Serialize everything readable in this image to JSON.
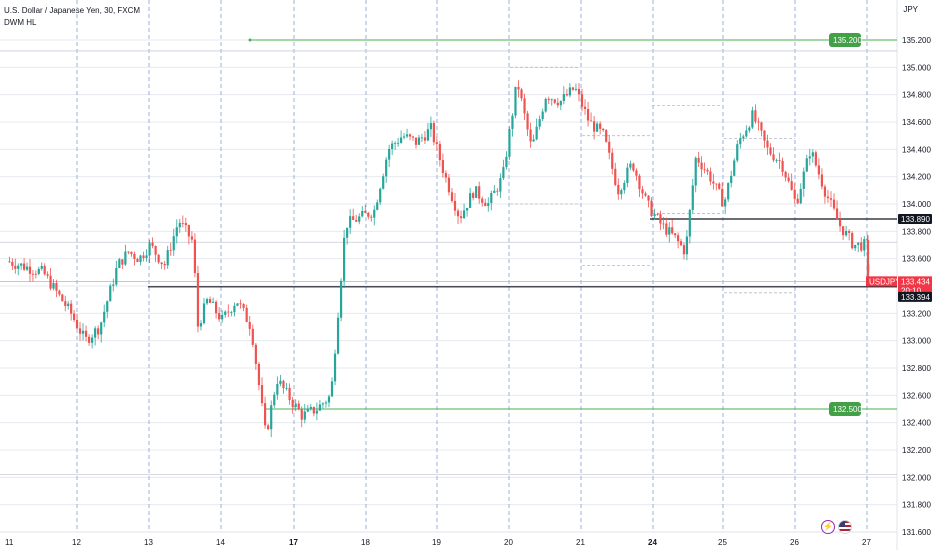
{
  "header": {
    "symbol_title": "U.S. Dollar / Japanese Yen, 30, FXCM",
    "indicator": "DWM HL"
  },
  "price_axis": {
    "currency": "JPY",
    "ticks": [
      "135.200",
      "135.000",
      "134.800",
      "134.600",
      "134.400",
      "134.200",
      "134.000",
      "133.800",
      "133.600",
      "133.400",
      "133.200",
      "133.000",
      "132.800",
      "132.600",
      "132.400",
      "132.200",
      "132.000",
      "131.800",
      "131.600"
    ]
  },
  "time_axis": {
    "ticks": [
      {
        "label": "11",
        "bold": false
      },
      {
        "label": "12",
        "bold": false
      },
      {
        "label": "13",
        "bold": false
      },
      {
        "label": "14",
        "bold": false
      },
      {
        "label": "17",
        "bold": true
      },
      {
        "label": "18",
        "bold": false
      },
      {
        "label": "19",
        "bold": false
      },
      {
        "label": "20",
        "bold": false
      },
      {
        "label": "21",
        "bold": false
      },
      {
        "label": "24",
        "bold": true
      },
      {
        "label": "25",
        "bold": false
      },
      {
        "label": "26",
        "bold": false
      },
      {
        "label": "27",
        "bold": false
      }
    ]
  },
  "tags": {
    "upper_level": "135.200",
    "lower_level": "132.500",
    "resistance": "133.890",
    "symbol": "USDJPY",
    "last_price": "133.434",
    "countdown": "20:10",
    "support": "133.394"
  },
  "colors": {
    "up": "#26a69a",
    "down": "#ef5350",
    "level_green": "#4caf50",
    "tag_green": "#43a047",
    "black_line": "#131722",
    "price_tag_red": "#f23645",
    "grid": "#9db2d8"
  },
  "chart_data": {
    "type": "candlestick",
    "symbol": "USDJPY",
    "timeframe": "30",
    "ylim": [
      131.56,
      135.3
    ],
    "levels": [
      {
        "price": 135.2,
        "style": "green"
      },
      {
        "price": 132.5,
        "style": "green"
      },
      {
        "price": 133.89,
        "style": "black"
      },
      {
        "price": 133.394,
        "style": "black"
      }
    ],
    "last_price": 133.434,
    "path": [
      [
        0.0,
        133.58
      ],
      [
        0.5,
        133.5
      ],
      [
        0.9,
        133.2
      ],
      [
        1.1,
        133.0
      ],
      [
        1.3,
        133.1
      ],
      [
        1.55,
        133.55
      ],
      [
        1.7,
        133.65
      ],
      [
        1.85,
        133.6
      ],
      [
        2.0,
        133.7
      ],
      [
        2.2,
        133.55
      ],
      [
        2.4,
        133.88
      ],
      [
        2.6,
        133.72
      ],
      [
        2.66,
        133.1
      ],
      [
        2.8,
        133.3
      ],
      [
        3.0,
        133.15
      ],
      [
        3.2,
        133.3
      ],
      [
        3.4,
        133.1
      ],
      [
        3.6,
        132.3
      ],
      [
        3.75,
        132.72
      ],
      [
        3.9,
        132.6
      ],
      [
        4.1,
        132.45
      ],
      [
        4.3,
        132.5
      ],
      [
        4.5,
        132.6
      ],
      [
        4.7,
        133.85
      ],
      [
        4.9,
        133.9
      ],
      [
        5.1,
        133.95
      ],
      [
        5.3,
        134.4
      ],
      [
        5.5,
        134.5
      ],
      [
        5.7,
        134.45
      ],
      [
        5.9,
        134.55
      ],
      [
        6.1,
        134.2
      ],
      [
        6.3,
        133.9
      ],
      [
        6.5,
        134.1
      ],
      [
        6.7,
        134.0
      ],
      [
        6.9,
        134.2
      ],
      [
        7.1,
        134.9
      ],
      [
        7.3,
        134.4
      ],
      [
        7.5,
        134.8
      ],
      [
        7.7,
        134.75
      ],
      [
        7.9,
        134.85
      ],
      [
        8.1,
        134.6
      ],
      [
        8.3,
        134.5
      ],
      [
        8.5,
        134.1
      ],
      [
        8.7,
        134.3
      ],
      [
        8.9,
        134.0
      ],
      [
        9.1,
        133.85
      ],
      [
        9.3,
        133.75
      ],
      [
        9.45,
        133.65
      ],
      [
        9.6,
        134.35
      ],
      [
        9.8,
        134.2
      ],
      [
        10.0,
        134.0
      ],
      [
        10.2,
        134.45
      ],
      [
        10.4,
        134.65
      ],
      [
        10.6,
        134.4
      ],
      [
        10.8,
        134.3
      ],
      [
        11.0,
        134.0
      ],
      [
        11.2,
        134.4
      ],
      [
        11.4,
        134.1
      ],
      [
        11.6,
        133.85
      ],
      [
        11.8,
        133.7
      ],
      [
        12.0,
        133.7
      ],
      [
        12.2,
        133.55
      ],
      [
        12.4,
        133.5
      ],
      [
        12.5,
        133.42
      ]
    ]
  }
}
